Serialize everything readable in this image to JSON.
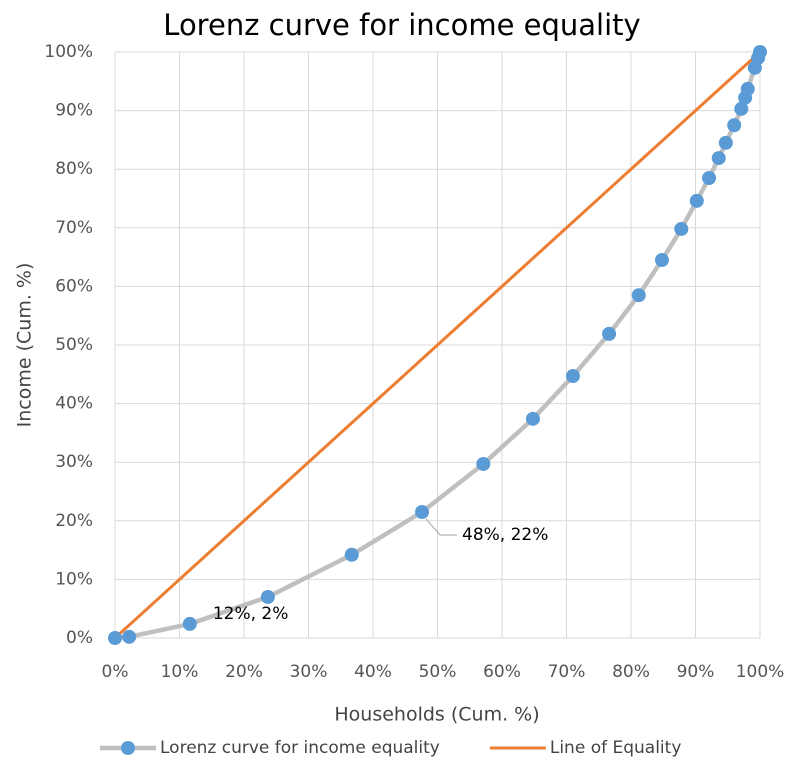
{
  "chart_data": {
    "type": "line",
    "title": "Lorenz curve for income equality",
    "xlabel": "Households (Cum. %)",
    "ylabel": "Income (Cum. %)",
    "series": [
      {
        "name": "Lorenz curve for income equality",
        "color": "#bfbfbf",
        "marker_color": "#5b9bd5",
        "x": [
          0,
          2.2,
          11.6,
          23.7,
          36.7,
          47.6,
          57.1,
          64.8,
          71.0,
          76.6,
          81.2,
          84.8,
          87.8,
          90.2,
          92.1,
          93.6,
          94.7,
          96.0,
          97.1,
          97.7,
          98.1,
          99.2,
          99.7,
          100
        ],
        "values": [
          0,
          0.2,
          2.4,
          7.0,
          14.2,
          21.5,
          29.7,
          37.4,
          44.7,
          51.9,
          58.5,
          64.5,
          69.8,
          74.6,
          78.5,
          81.9,
          84.5,
          87.5,
          90.3,
          92.2,
          93.7,
          97.3,
          99.0,
          100
        ],
        "value_labels": [
          null,
          null,
          "12%, 2%",
          null,
          null,
          "48%, 22%",
          null,
          null,
          null,
          null,
          null,
          null,
          null,
          null,
          null,
          null,
          null,
          null,
          null,
          null,
          null,
          null,
          null,
          null
        ]
      },
      {
        "name": "Line of Equality",
        "color": "#ed7d31",
        "x": [
          0,
          100
        ],
        "values": [
          0,
          100
        ]
      }
    ],
    "xlim": [
      0,
      100
    ],
    "ylim": [
      0,
      100
    ],
    "xticks": [
      {
        "value": 0,
        "label": "0%"
      },
      {
        "value": 10,
        "label": "10%"
      },
      {
        "value": 20,
        "label": "20%"
      },
      {
        "value": 30,
        "label": "30%"
      },
      {
        "value": 40,
        "label": "40%"
      },
      {
        "value": 50,
        "label": "50%"
      },
      {
        "value": 60,
        "label": "60%"
      },
      {
        "value": 70,
        "label": "70%"
      },
      {
        "value": 80,
        "label": "80%"
      },
      {
        "value": 90,
        "label": "90%"
      },
      {
        "value": 100,
        "label": "100%"
      }
    ],
    "yticks": [
      {
        "value": 0,
        "label": "0%"
      },
      {
        "value": 10,
        "label": "10%"
      },
      {
        "value": 20,
        "label": "20%"
      },
      {
        "value": 30,
        "label": "30%"
      },
      {
        "value": 40,
        "label": "40%"
      },
      {
        "value": 50,
        "label": "50%"
      },
      {
        "value": 60,
        "label": "60%"
      },
      {
        "value": 70,
        "label": "70%"
      },
      {
        "value": 80,
        "label": "80%"
      },
      {
        "value": 90,
        "label": "90%"
      },
      {
        "value": 100,
        "label": "100%"
      }
    ],
    "grid": true,
    "legend": "bottom"
  }
}
